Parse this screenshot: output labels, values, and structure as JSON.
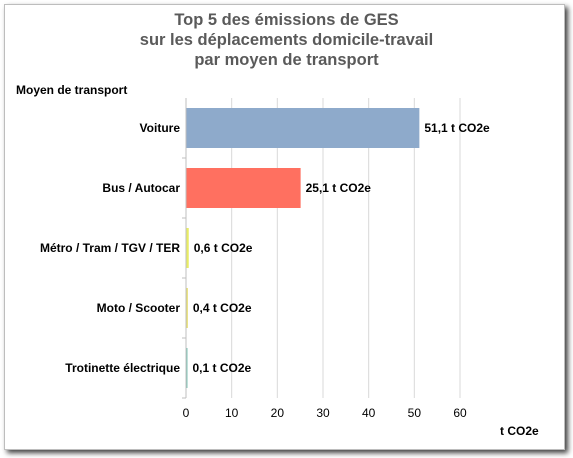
{
  "chart_data": {
    "type": "bar",
    "orientation": "horizontal",
    "title_lines": [
      "Top 5 des émissions de GES",
      "sur les déplacements domicile-travail",
      "par moyen de transport"
    ],
    "ylabel": "Moyen de transport",
    "xlabel": "t CO2e",
    "xlim": [
      0,
      60
    ],
    "x_ticks": [
      "0",
      "10",
      "20",
      "30",
      "40",
      "50",
      "60"
    ],
    "grid": true,
    "categories": [
      "Voiture",
      "Bus / Autocar",
      "Métro / Tram / TGV / TER",
      "Moto / Scooter",
      "Trotinette électrique"
    ],
    "values": [
      51.1,
      25.1,
      0.6,
      0.4,
      0.1
    ],
    "value_labels": [
      "51,1 t CO2e",
      "25,1 t CO2e",
      "0,6 t CO2e",
      "0,4 t CO2e",
      "0,1 t CO2e"
    ],
    "colors": [
      "#8eaacb",
      "#ff7060",
      "#e8ec64",
      "#e6dd6e",
      "#7fc3b5"
    ]
  }
}
